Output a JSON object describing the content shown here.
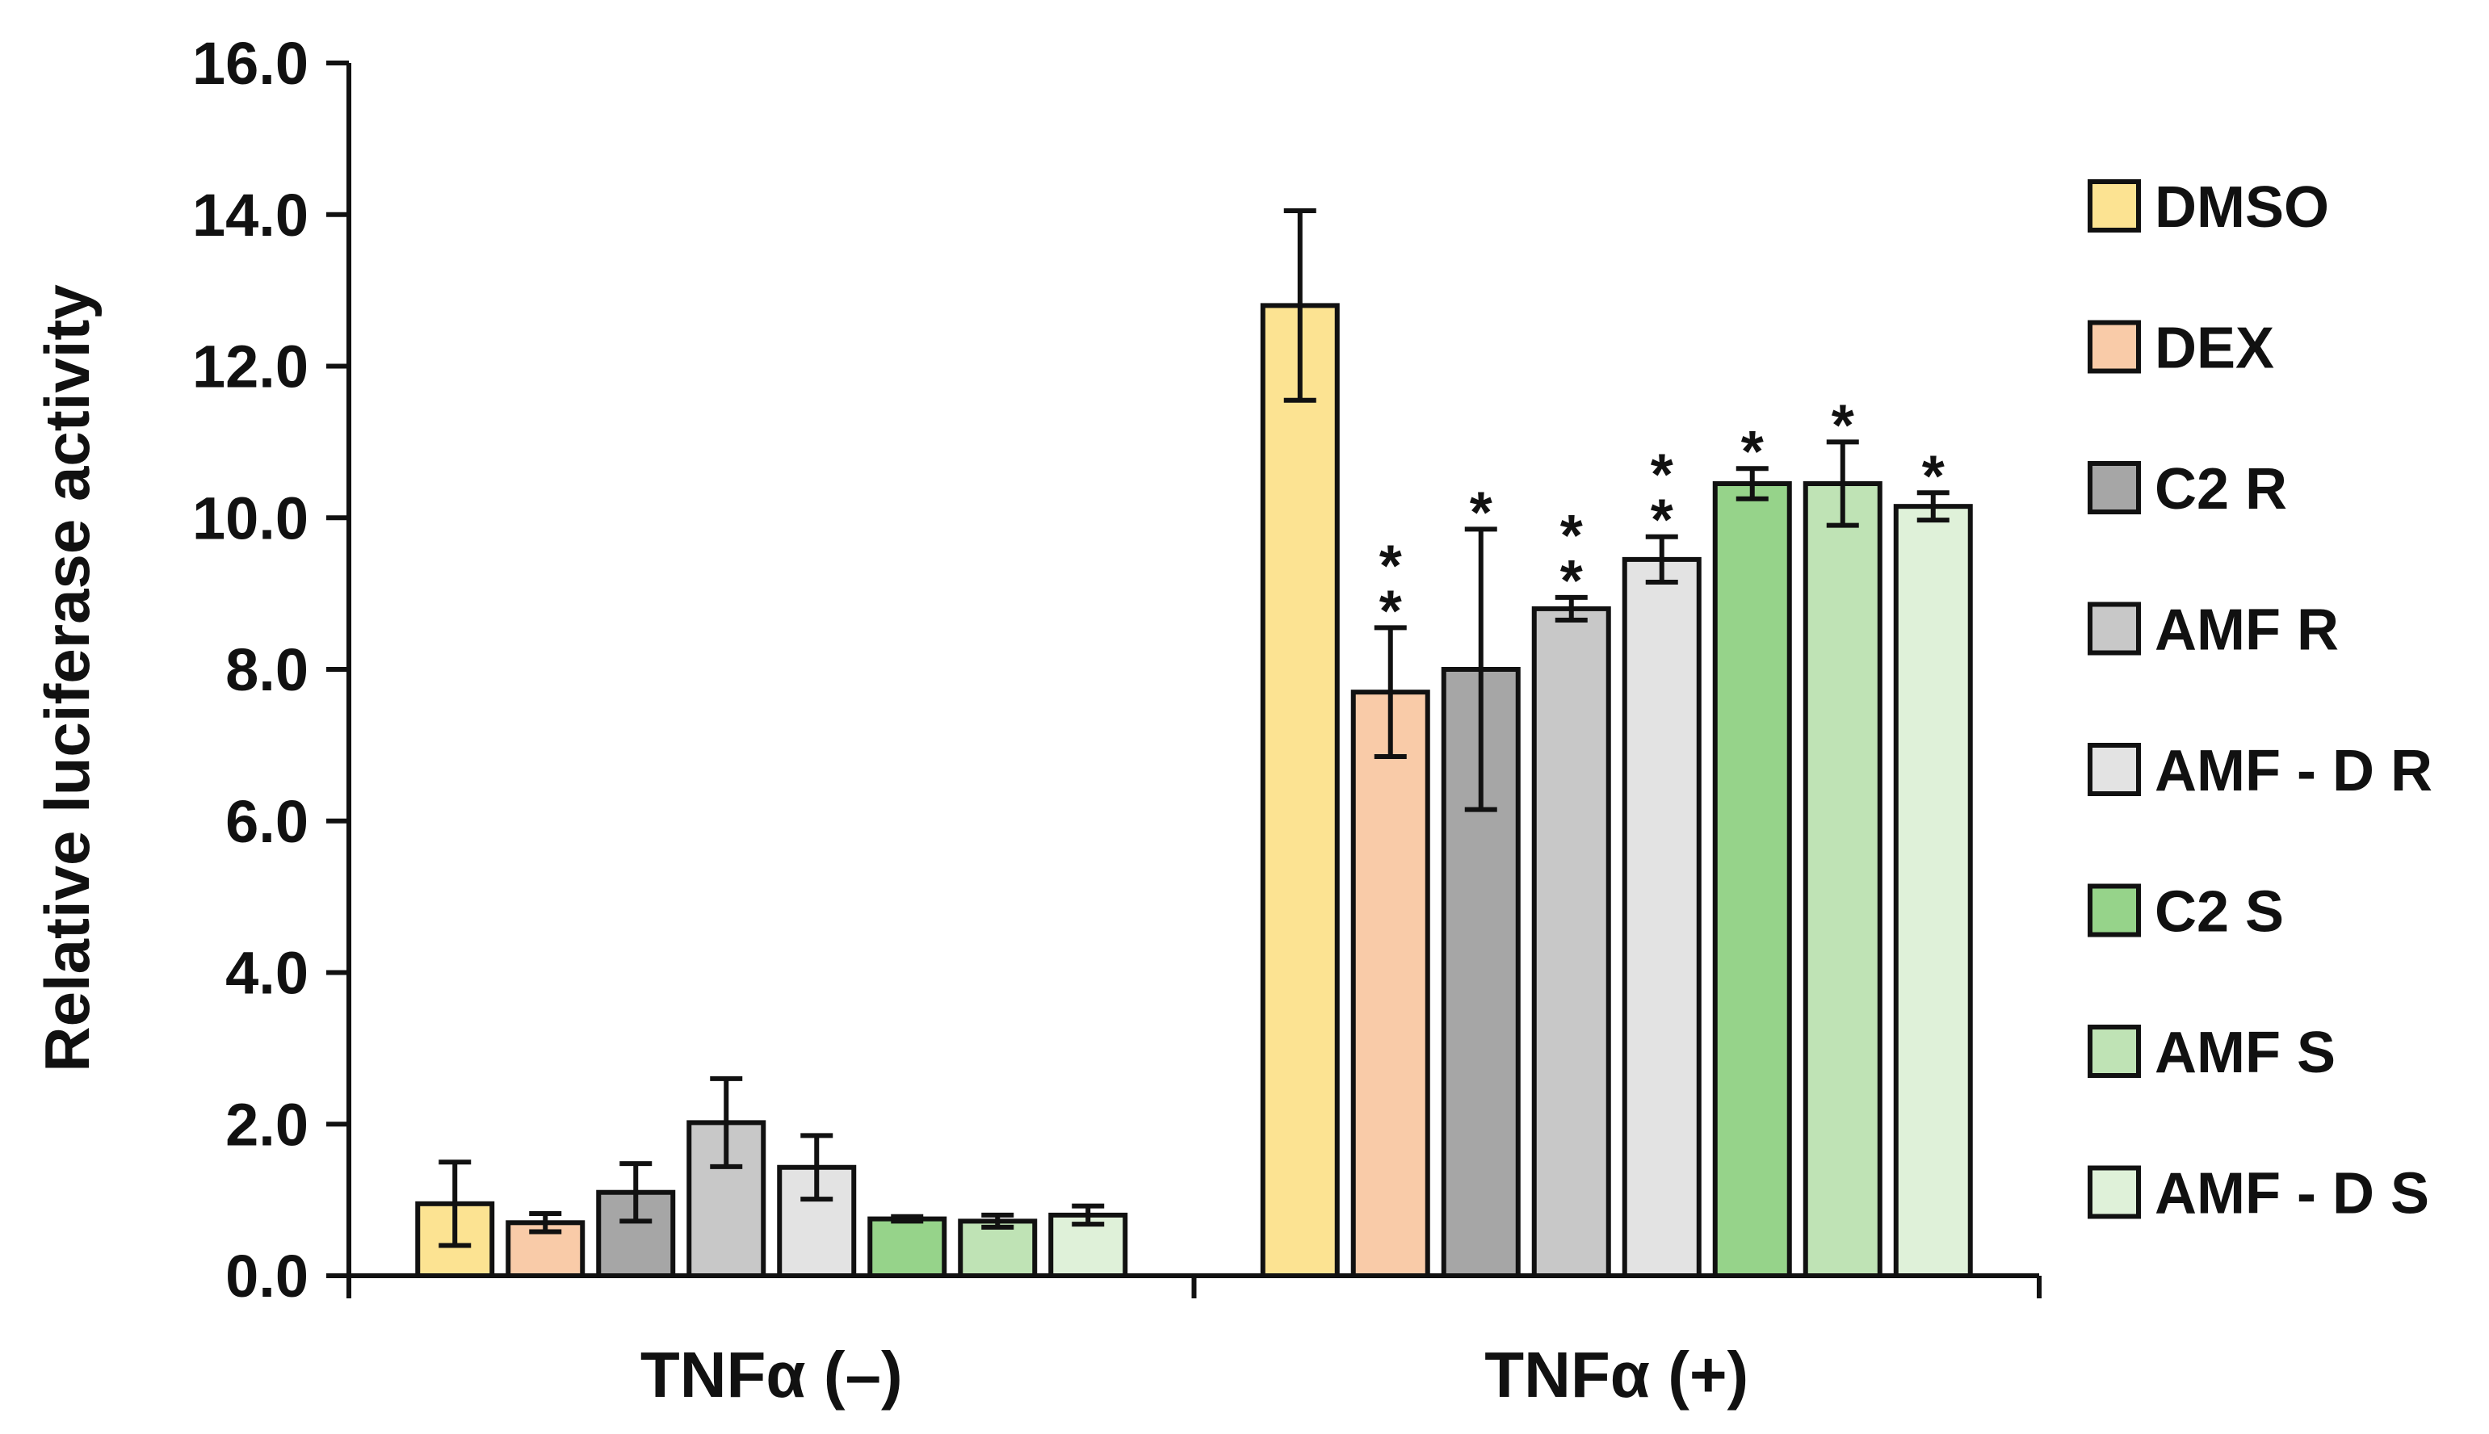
{
  "chart_data": {
    "type": "bar",
    "title": "",
    "xlabel": "",
    "ylabel": "Relative luciferase activity",
    "ylim": [
      0,
      16
    ],
    "yticks": [
      "0.0",
      "2.0",
      "4.0",
      "6.0",
      "8.0",
      "10.0",
      "12.0",
      "14.0",
      "16.0"
    ],
    "categories": [
      "TNFα (–)",
      "TNFα (+)"
    ],
    "legend_position": "right",
    "series": [
      {
        "name": "DMSO",
        "color": "#fce392",
        "values": [
          0.95,
          12.8
        ],
        "errors": [
          0.55,
          1.25
        ],
        "sig": [
          "",
          ""
        ]
      },
      {
        "name": "DEX",
        "color": "#f9cba8",
        "values": [
          0.7,
          7.7
        ],
        "errors": [
          0.12,
          0.85
        ],
        "sig": [
          "",
          "**"
        ]
      },
      {
        "name": "C2 R",
        "color": "#a6a6a6",
        "values": [
          1.1,
          8.0
        ],
        "errors": [
          0.38,
          1.85
        ],
        "sig": [
          "",
          "*"
        ]
      },
      {
        "name": "AMF R",
        "color": "#c8c8c8",
        "values": [
          2.02,
          8.8
        ],
        "errors": [
          0.58,
          0.15
        ],
        "sig": [
          "",
          "**"
        ]
      },
      {
        "name": "AMF - D R",
        "color": "#e3e3e3",
        "values": [
          1.43,
          9.45
        ],
        "errors": [
          0.42,
          0.3
        ],
        "sig": [
          "",
          "**"
        ]
      },
      {
        "name": "C2 S",
        "color": "#96d38a",
        "values": [
          0.75,
          10.45
        ],
        "errors": [
          0.03,
          0.2
        ],
        "sig": [
          "",
          "*"
        ]
      },
      {
        "name": "AMF S",
        "color": "#bfe3b5",
        "values": [
          0.72,
          10.45
        ],
        "errors": [
          0.08,
          0.55
        ],
        "sig": [
          "",
          "*"
        ]
      },
      {
        "name": "AMF - D S",
        "color": "#dff1d9",
        "values": [
          0.8,
          10.15
        ],
        "errors": [
          0.12,
          0.18
        ],
        "sig": [
          "",
          "*"
        ]
      }
    ]
  }
}
